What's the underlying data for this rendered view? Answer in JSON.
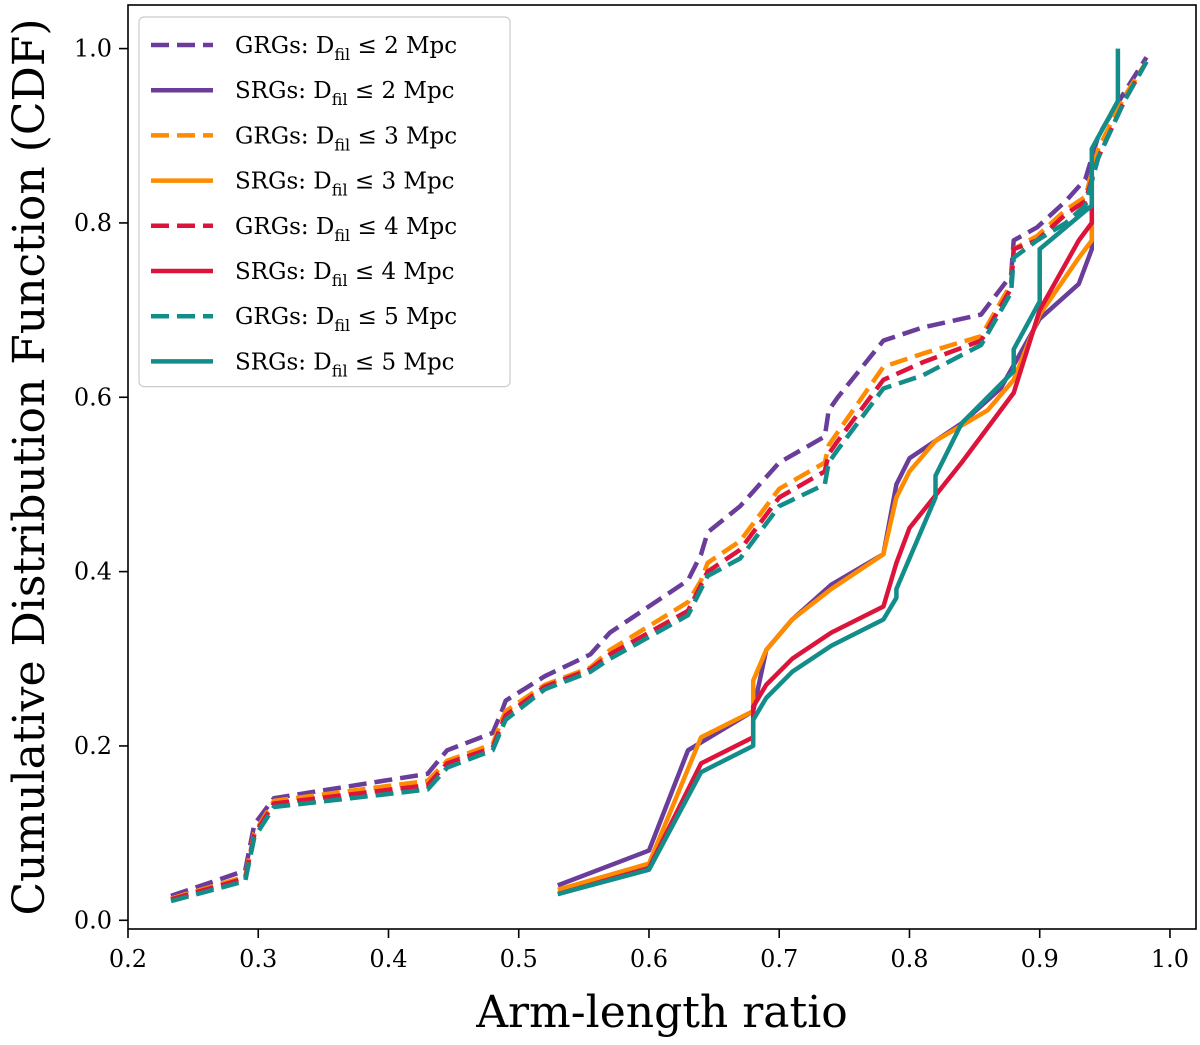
{
  "chart_data": {
    "type": "line",
    "title": "",
    "xlabel": "Arm-length ratio",
    "ylabel": "Cumulative Distribution Function (CDF)",
    "xlim": [
      0.2,
      1.02
    ],
    "ylim": [
      -0.01,
      1.05
    ],
    "xticks": [
      "0.2",
      "0.3",
      "0.4",
      "0.5",
      "0.6",
      "0.7",
      "0.8",
      "0.9",
      "1.0"
    ],
    "yticks": [
      "0.0",
      "0.2",
      "0.4",
      "0.6",
      "0.8",
      "1.0"
    ],
    "grid": false,
    "legend_position": "top-left",
    "legend": [
      {
        "prefix": "GRGs: D",
        "sub": "fil",
        "suffix": " ≤ 2 Mpc"
      },
      {
        "prefix": "SRGs: D",
        "sub": "fil",
        "suffix": " ≤ 2 Mpc"
      },
      {
        "prefix": "GRGs: D",
        "sub": "fil",
        "suffix": " ≤ 3 Mpc"
      },
      {
        "prefix": "SRGs: D",
        "sub": "fil",
        "suffix": " ≤ 3 Mpc"
      },
      {
        "prefix": "GRGs: D",
        "sub": "fil",
        "suffix": " ≤ 4 Mpc"
      },
      {
        "prefix": "SRGs: D",
        "sub": "fil",
        "suffix": " ≤ 4 Mpc"
      },
      {
        "prefix": "GRGs: D",
        "sub": "fil",
        "suffix": " ≤ 5 Mpc"
      },
      {
        "prefix": "SRGs: D",
        "sub": "fil",
        "suffix": " ≤ 5 Mpc"
      }
    ],
    "series": [
      {
        "name": "GRGs: Dfil ≤ 2 Mpc",
        "color": "#6a3d9a",
        "dash": true,
        "x": [
          0.233,
          0.29,
          0.297,
          0.312,
          0.43,
          0.445,
          0.48,
          0.487,
          0.49,
          0.52,
          0.555,
          0.57,
          0.63,
          0.64,
          0.645,
          0.67,
          0.7,
          0.735,
          0.738,
          0.745,
          0.78,
          0.81,
          0.855,
          0.878,
          0.88,
          0.898,
          0.92,
          0.935,
          0.945,
          0.965,
          0.982
        ],
        "y": [
          0.028,
          0.057,
          0.11,
          0.14,
          0.168,
          0.195,
          0.215,
          0.24,
          0.252,
          0.28,
          0.305,
          0.33,
          0.39,
          0.42,
          0.445,
          0.475,
          0.525,
          0.555,
          0.585,
          0.6,
          0.665,
          0.68,
          0.695,
          0.74,
          0.78,
          0.795,
          0.825,
          0.85,
          0.9,
          0.95,
          0.99
        ]
      },
      {
        "name": "SRGs: Dfil ≤ 2 Mpc",
        "color": "#6a3d9a",
        "dash": false,
        "x": [
          0.53,
          0.6,
          0.63,
          0.68,
          0.69,
          0.71,
          0.74,
          0.78,
          0.79,
          0.8,
          0.84,
          0.87,
          0.9,
          0.93,
          0.94,
          0.94
        ],
        "y": [
          0.04,
          0.08,
          0.195,
          0.24,
          0.31,
          0.345,
          0.385,
          0.42,
          0.5,
          0.53,
          0.57,
          0.61,
          0.69,
          0.73,
          0.77,
          0.8
        ]
      },
      {
        "name": "GRGs: Dfil ≤ 3 Mpc",
        "color": "#ff8c00",
        "dash": true,
        "x": [
          0.233,
          0.29,
          0.297,
          0.312,
          0.43,
          0.445,
          0.48,
          0.487,
          0.49,
          0.52,
          0.555,
          0.57,
          0.63,
          0.64,
          0.645,
          0.67,
          0.7,
          0.735,
          0.738,
          0.745,
          0.78,
          0.81,
          0.855,
          0.878,
          0.88,
          0.898,
          0.92,
          0.935,
          0.945,
          0.965,
          0.982
        ],
        "y": [
          0.025,
          0.05,
          0.1,
          0.137,
          0.16,
          0.183,
          0.202,
          0.23,
          0.24,
          0.27,
          0.29,
          0.31,
          0.365,
          0.39,
          0.41,
          0.435,
          0.495,
          0.525,
          0.545,
          0.56,
          0.635,
          0.65,
          0.67,
          0.73,
          0.77,
          0.785,
          0.815,
          0.83,
          0.885,
          0.945,
          0.985
        ]
      },
      {
        "name": "SRGs: Dfil ≤ 3 Mpc",
        "color": "#ff8c00",
        "dash": false,
        "x": [
          0.53,
          0.6,
          0.64,
          0.68,
          0.68,
          0.69,
          0.71,
          0.74,
          0.78,
          0.79,
          0.8,
          0.82,
          0.86,
          0.88,
          0.9,
          0.93,
          0.94,
          0.94
        ],
        "y": [
          0.035,
          0.065,
          0.21,
          0.24,
          0.275,
          0.31,
          0.345,
          0.38,
          0.42,
          0.485,
          0.515,
          0.55,
          0.585,
          0.62,
          0.695,
          0.76,
          0.78,
          0.82
        ]
      },
      {
        "name": "GRGs: Dfil ≤ 4 Mpc",
        "color": "#dc143c",
        "dash": true,
        "x": [
          0.233,
          0.29,
          0.297,
          0.312,
          0.43,
          0.445,
          0.48,
          0.487,
          0.49,
          0.52,
          0.555,
          0.57,
          0.63,
          0.64,
          0.645,
          0.67,
          0.7,
          0.735,
          0.738,
          0.745,
          0.78,
          0.81,
          0.855,
          0.878,
          0.88,
          0.898,
          0.92,
          0.935,
          0.945,
          0.965,
          0.982
        ],
        "y": [
          0.024,
          0.048,
          0.098,
          0.134,
          0.155,
          0.18,
          0.198,
          0.225,
          0.235,
          0.268,
          0.288,
          0.305,
          0.355,
          0.385,
          0.4,
          0.425,
          0.485,
          0.515,
          0.535,
          0.55,
          0.62,
          0.64,
          0.665,
          0.725,
          0.77,
          0.78,
          0.81,
          0.825,
          0.875,
          0.94,
          0.985
        ]
      },
      {
        "name": "SRGs: Dfil ≤ 4 Mpc",
        "color": "#dc143c",
        "dash": false,
        "x": [
          0.53,
          0.6,
          0.64,
          0.68,
          0.68,
          0.69,
          0.71,
          0.74,
          0.78,
          0.79,
          0.8,
          0.84,
          0.88,
          0.9,
          0.93,
          0.94,
          0.94
        ],
        "y": [
          0.03,
          0.06,
          0.18,
          0.21,
          0.245,
          0.27,
          0.3,
          0.33,
          0.36,
          0.41,
          0.45,
          0.525,
          0.605,
          0.7,
          0.78,
          0.8,
          0.86
        ]
      },
      {
        "name": "GRGs: Dfil ≤ 5 Mpc",
        "color": "#138d8a",
        "dash": true,
        "x": [
          0.233,
          0.29,
          0.297,
          0.312,
          0.43,
          0.445,
          0.48,
          0.487,
          0.49,
          0.52,
          0.555,
          0.57,
          0.63,
          0.64,
          0.645,
          0.67,
          0.7,
          0.735,
          0.738,
          0.745,
          0.78,
          0.81,
          0.855,
          0.878,
          0.88,
          0.898,
          0.92,
          0.935,
          0.945,
          0.965,
          0.982
        ],
        "y": [
          0.022,
          0.045,
          0.095,
          0.13,
          0.15,
          0.175,
          0.195,
          0.22,
          0.23,
          0.265,
          0.285,
          0.3,
          0.35,
          0.38,
          0.395,
          0.415,
          0.475,
          0.5,
          0.525,
          0.54,
          0.61,
          0.625,
          0.66,
          0.72,
          0.76,
          0.78,
          0.8,
          0.82,
          0.875,
          0.94,
          0.985
        ]
      },
      {
        "name": "SRGs: Dfil ≤ 5 Mpc",
        "color": "#138d8a",
        "dash": false,
        "x": [
          0.53,
          0.6,
          0.64,
          0.68,
          0.68,
          0.69,
          0.71,
          0.74,
          0.78,
          0.79,
          0.79,
          0.82,
          0.82,
          0.84,
          0.88,
          0.88,
          0.9,
          0.9,
          0.94,
          0.94,
          0.96,
          0.96
        ],
        "y": [
          0.03,
          0.058,
          0.17,
          0.2,
          0.23,
          0.255,
          0.285,
          0.315,
          0.345,
          0.37,
          0.38,
          0.485,
          0.51,
          0.57,
          0.63,
          0.655,
          0.71,
          0.77,
          0.82,
          0.885,
          0.94,
          1.0
        ]
      }
    ]
  }
}
